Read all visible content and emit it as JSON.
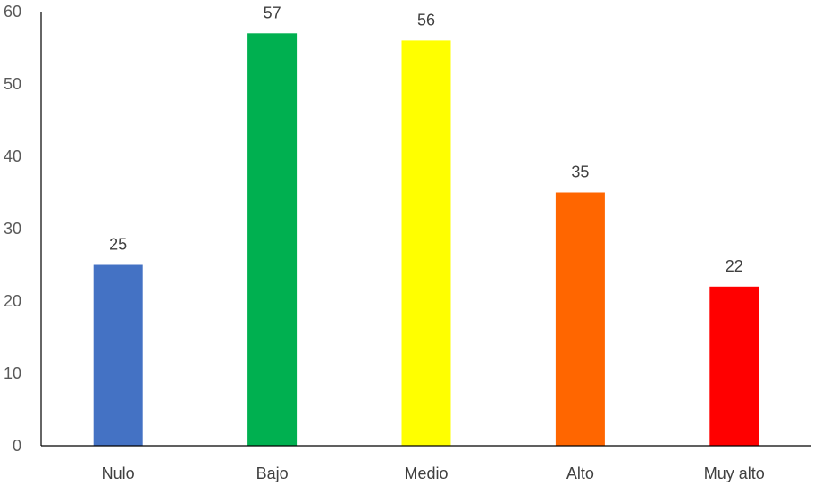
{
  "chart_data": {
    "type": "bar",
    "title": "",
    "xlabel": "",
    "ylabel": "",
    "categories": [
      "Nulo",
      "Bajo",
      "Medio",
      "Alto",
      "Muy alto"
    ],
    "values": [
      25,
      57,
      56,
      35,
      22
    ],
    "colors": [
      "#4472C4",
      "#00B050",
      "#FFFF00",
      "#FF6600",
      "#FF0000"
    ],
    "ylim": [
      0,
      60
    ],
    "yticks": [
      0,
      10,
      20,
      30,
      40,
      50,
      60
    ],
    "grid": false,
    "legend": "none",
    "data_labels": true
  }
}
